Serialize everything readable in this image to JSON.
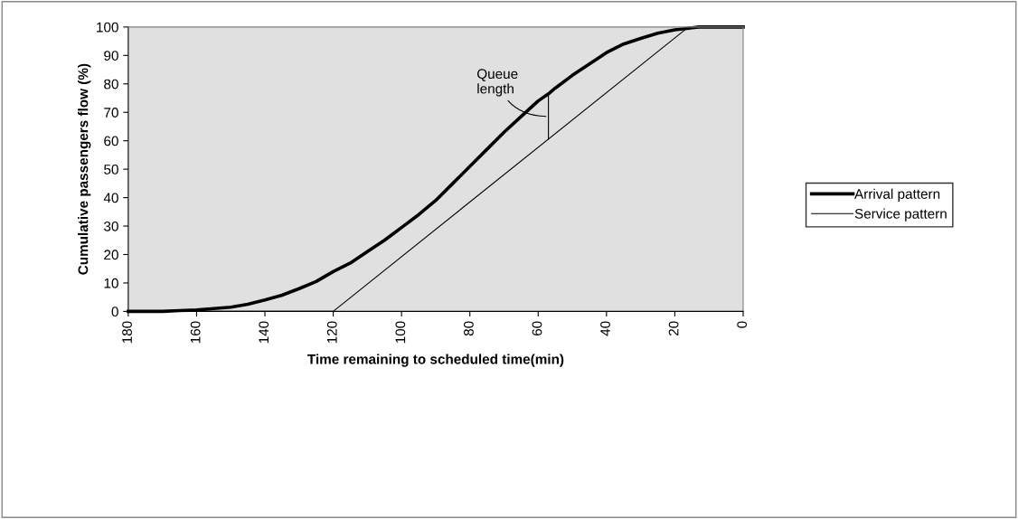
{
  "chart_data": {
    "type": "line",
    "xlabel": "Time remaining to scheduled time(min)",
    "ylabel": "Cumulative passengers flow (%)",
    "series": [
      {
        "name": "Arrival pattern",
        "color": "#000000",
        "x": [
          180,
          170,
          165,
          160,
          155,
          150,
          145,
          140,
          135,
          130,
          125,
          120,
          115,
          110,
          105,
          100,
          95,
          90,
          85,
          80,
          75,
          70,
          65,
          60,
          57,
          55,
          50,
          45,
          40,
          35,
          30,
          25,
          20,
          15,
          13,
          0
        ],
        "values": [
          0,
          0,
          0.3,
          0.5,
          1,
          1.5,
          2.5,
          4,
          5.7,
          8,
          10.5,
          14,
          17,
          21,
          25,
          29.5,
          34,
          39,
          45,
          51,
          57,
          63,
          68.5,
          74,
          76.5,
          78.5,
          83,
          87,
          91,
          94,
          96,
          97.8,
          99,
          99.7,
          100,
          100
        ]
      },
      {
        "name": "Service pattern",
        "color": "#000000",
        "x": [
          180,
          120,
          16,
          0
        ],
        "values": [
          0,
          0,
          100,
          100
        ]
      }
    ],
    "annotations": [
      {
        "text": "Queue\nlength",
        "x": 57,
        "y": 76.5
      }
    ],
    "xlim": [
      180,
      0
    ],
    "xticks": [
      180,
      160,
      140,
      120,
      100,
      80,
      60,
      40,
      20,
      0
    ],
    "ylim": [
      0,
      100
    ],
    "yticks": [
      0,
      10,
      20,
      30,
      40,
      50,
      60,
      70,
      80,
      90,
      100
    ],
    "grid": false,
    "legend": "right"
  }
}
